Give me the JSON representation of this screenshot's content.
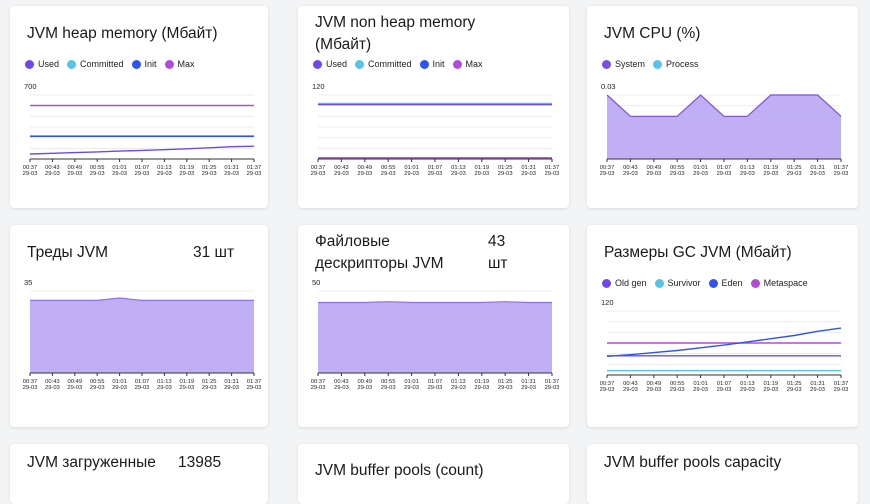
{
  "colors": {
    "used": "#7048e8",
    "committed": "#57c3e6",
    "init": "#2f54eb",
    "max": "#b44bd6",
    "system": "#7a4fe0",
    "process": "#57c3e6",
    "fill": "#b9a6f3",
    "line": "#8e72ec"
  },
  "x_ticks": [
    {
      "time": "00:37",
      "date": "29-03"
    },
    {
      "time": "00:43",
      "date": "29-03"
    },
    {
      "time": "00:49",
      "date": "29-03"
    },
    {
      "time": "00:55",
      "date": "29-03"
    },
    {
      "time": "01:01",
      "date": "29-03"
    },
    {
      "time": "01:07",
      "date": "29-03"
    },
    {
      "time": "01:13",
      "date": "29-03"
    },
    {
      "time": "01:19",
      "date": "29-03"
    },
    {
      "time": "01:25",
      "date": "29-03"
    },
    {
      "time": "01:31",
      "date": "29-03"
    },
    {
      "time": "01:37",
      "date": "29-03"
    }
  ],
  "cards": {
    "heap": {
      "title": "JVM heap memory (Мбайт)",
      "legend": [
        {
          "name": "Used",
          "color": "#7048e8"
        },
        {
          "name": "Committed",
          "color": "#57c3e6"
        },
        {
          "name": "Init",
          "color": "#2f54eb"
        },
        {
          "name": "Max",
          "color": "#b44bd6"
        }
      ]
    },
    "nonheap": {
      "title": "JVM non heap memory (Мбайт)",
      "legend": [
        {
          "name": "Used",
          "color": "#7048e8"
        },
        {
          "name": "Committed",
          "color": "#57c3e6"
        },
        {
          "name": "Init",
          "color": "#2f54eb"
        },
        {
          "name": "Max",
          "color": "#b44bd6"
        }
      ]
    },
    "cpu": {
      "title": "JVM CPU (%)",
      "legend": [
        {
          "name": "System",
          "color": "#7a4fe0"
        },
        {
          "name": "Process",
          "color": "#57c3e6"
        }
      ]
    },
    "threads": {
      "title": "Треды JVM",
      "value": "31 шт"
    },
    "fds": {
      "title_line1": "Файловые",
      "title_line2": "дескрипторы JVM",
      "value_line1": "43",
      "value_line2": "шт"
    },
    "gc": {
      "title": "Размеры GC JVM (Мбайт)",
      "legend": [
        {
          "name": "Old gen",
          "color": "#7048e8"
        },
        {
          "name": "Survivor",
          "color": "#57c3e6"
        },
        {
          "name": "Eden",
          "color": "#2f54eb"
        },
        {
          "name": "Metaspace",
          "color": "#b44bd6"
        }
      ]
    },
    "loaded": {
      "title": "JVM загруженные",
      "value": "13985"
    },
    "bufcount": {
      "title": "JVM buffer pools (count)"
    },
    "bufcap": {
      "title": "JVM buffer pools capacity"
    }
  },
  "chart_data": [
    {
      "type": "line",
      "title": "JVM heap memory (Мбайт)",
      "x": [
        "00:37",
        "00:43",
        "00:49",
        "00:55",
        "01:01",
        "01:07",
        "01:13",
        "01:19",
        "01:25",
        "01:31",
        "01:37"
      ],
      "y_tick_label": "700",
      "ylim": [
        0,
        700
      ],
      "series": [
        {
          "name": "Max",
          "color": "#b44bd6",
          "values": [
            585,
            585,
            585,
            585,
            585,
            585,
            585,
            585,
            585,
            585,
            585
          ]
        },
        {
          "name": "Committed",
          "color": "#57c3e6",
          "values": [
            252,
            252,
            252,
            252,
            252,
            252,
            252,
            252,
            252,
            252,
            252
          ]
        },
        {
          "name": "Init",
          "color": "#2f54eb",
          "values": [
            248,
            248,
            248,
            248,
            248,
            248,
            248,
            248,
            248,
            248,
            248
          ]
        },
        {
          "name": "Used",
          "color": "#7048e8",
          "values": [
            55,
            62,
            70,
            78,
            86,
            94,
            102,
            112,
            122,
            135,
            140
          ]
        }
      ]
    },
    {
      "type": "line",
      "title": "JVM non heap memory (Мбайт)",
      "x": [
        "00:37",
        "00:43",
        "00:49",
        "00:55",
        "01:01",
        "01:07",
        "01:13",
        "01:19",
        "01:25",
        "01:31",
        "01:37"
      ],
      "y_tick_label": "120",
      "ylim": [
        0,
        120
      ],
      "series": [
        {
          "name": "Committed",
          "color": "#57c3e6",
          "values": [
            104,
            104,
            104,
            104,
            104,
            104,
            104,
            104,
            104,
            104,
            104
          ]
        },
        {
          "name": "Used",
          "color": "#7048e8",
          "values": [
            102,
            102,
            102,
            102,
            102,
            102,
            102,
            102,
            102,
            102,
            102
          ]
        },
        {
          "name": "Init",
          "color": "#2f54eb",
          "values": [
            2,
            2,
            2,
            2,
            2,
            2,
            2,
            2,
            2,
            2,
            2
          ]
        },
        {
          "name": "Max",
          "color": "#b44bd6",
          "values": [
            1,
            1,
            1,
            1,
            1,
            1,
            1,
            1,
            1,
            1,
            1
          ]
        }
      ]
    },
    {
      "type": "area",
      "title": "JVM CPU (%)",
      "x": [
        "00:37",
        "00:43",
        "00:49",
        "00:55",
        "01:01",
        "01:07",
        "01:13",
        "01:19",
        "01:25",
        "01:31",
        "01:37"
      ],
      "y_tick_label": "0.03",
      "ylim": [
        0,
        0.03
      ],
      "series": [
        {
          "name": "System",
          "color": "#7a4fe0",
          "values": [
            0.03,
            0.02,
            0.02,
            0.02,
            0.03,
            0.02,
            0.02,
            0.03,
            0.03,
            0.03,
            0.02
          ]
        }
      ]
    },
    {
      "type": "area",
      "title": "Треды JVM",
      "x": [
        "00:37",
        "00:43",
        "00:49",
        "00:55",
        "01:01",
        "01:07",
        "01:13",
        "01:19",
        "01:25",
        "01:31",
        "01:37"
      ],
      "y_tick_label": "35",
      "ylim": [
        0,
        35
      ],
      "series": [
        {
          "name": "",
          "color": "#8e72ec",
          "values": [
            31,
            31,
            31,
            31,
            32,
            31,
            31,
            31,
            31,
            31,
            31
          ]
        }
      ]
    },
    {
      "type": "area",
      "title": "Файловые дескрипторы JVM",
      "x": [
        "00:37",
        "00:43",
        "00:49",
        "00:55",
        "01:01",
        "01:07",
        "01:13",
        "01:19",
        "01:25",
        "01:31",
        "01:37"
      ],
      "y_tick_label": "50",
      "ylim": [
        0,
        50
      ],
      "series": [
        {
          "name": "",
          "color": "#8e72ec",
          "values": [
            43,
            43,
            43,
            43.5,
            43,
            43,
            43,
            43,
            43.5,
            43,
            43
          ]
        }
      ]
    },
    {
      "type": "line",
      "title": "Размеры GC JVM (Мбайт)",
      "x": [
        "00:37",
        "00:43",
        "00:49",
        "00:55",
        "01:01",
        "01:07",
        "01:13",
        "01:19",
        "01:25",
        "01:31",
        "01:37"
      ],
      "y_tick_label": "120",
      "ylim": [
        0,
        120
      ],
      "series": [
        {
          "name": "Metaspace",
          "color": "#b44bd6",
          "values": [
            60,
            60,
            60,
            60,
            60,
            60,
            60,
            60,
            60,
            60,
            60
          ]
        },
        {
          "name": "Old gen",
          "color": "#7048e8",
          "values": [
            36,
            36,
            36,
            36,
            36,
            36,
            36,
            36,
            36,
            36,
            36
          ]
        },
        {
          "name": "Eden",
          "color": "#2f54eb",
          "values": [
            35,
            38,
            42,
            46,
            51,
            56,
            62,
            68,
            74,
            82,
            88
          ]
        },
        {
          "name": "Survivor",
          "color": "#57c3e6",
          "values": [
            8,
            8,
            8,
            8,
            8,
            8,
            8,
            8,
            8,
            8,
            8
          ]
        }
      ]
    }
  ]
}
